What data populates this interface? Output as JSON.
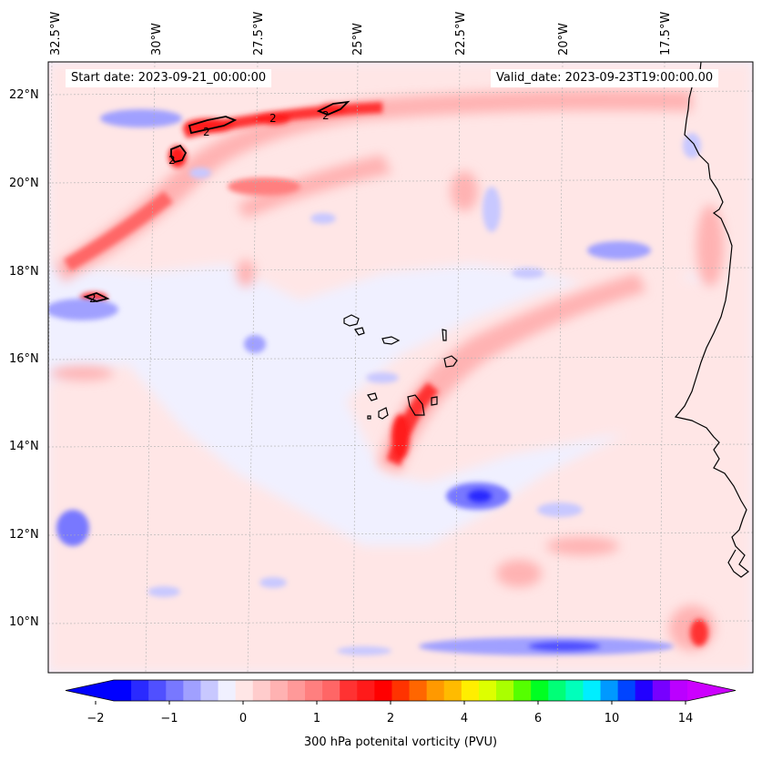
{
  "map": {
    "start_date": "Start date: 2023-09-21_00:00:00",
    "valid_date": "Valid_date: 2023-09-23T19:00:00.00",
    "lon_labels": [
      "32.5°W",
      "30°W",
      "27.5°W",
      "25°W",
      "22.5°W",
      "20°W",
      "17.5°W"
    ],
    "lat_labels": [
      "22°N",
      "20°N",
      "18°N",
      "16°N",
      "14°N",
      "12°N",
      "10°N"
    ],
    "contour_label": "2",
    "background_color": "#f0f0ff"
  },
  "colorbar": {
    "title": "300 hPa potenital vorticity (PVU)",
    "tick_labels": [
      "−2",
      "−1",
      "0",
      "1",
      "2",
      "4",
      "6",
      "10",
      "14"
    ],
    "colors": [
      "#0000ff",
      "#2a2aff",
      "#5050ff",
      "#7878ff",
      "#a0a0ff",
      "#c8c8ff",
      "#f0f0ff",
      "#ffe6e6",
      "#ffcccc",
      "#ffb2b2",
      "#ff9999",
      "#ff7f7f",
      "#ff6666",
      "#ff3232",
      "#ff1a1a",
      "#ff0000",
      "#ff3300",
      "#ff6600",
      "#ff9900",
      "#ffbb00",
      "#ffee00",
      "#ddff00",
      "#aaff00",
      "#55ff00",
      "#00ff22",
      "#00ff77",
      "#00ffbb",
      "#00eeff",
      "#0099ff",
      "#0044ff",
      "#2200ff",
      "#7700ff",
      "#bb00ff"
    ],
    "min_color": "#0000ff",
    "max_color": "#cc00ff"
  }
}
